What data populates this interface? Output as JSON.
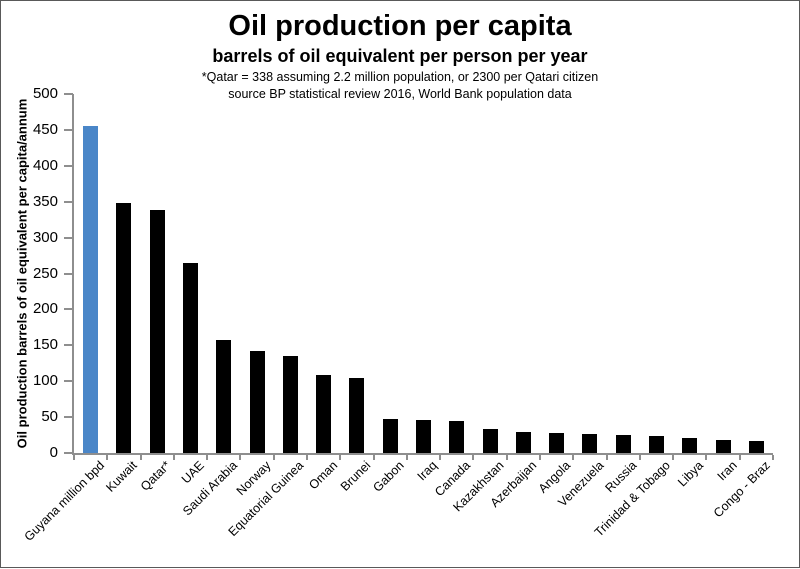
{
  "window": {
    "background": "#ffffff",
    "border_color": "#595959"
  },
  "chart_data": {
    "type": "bar",
    "title": "Oil production per capita",
    "subtitle": "barrels of oil equivalent per person per year",
    "notes": [
      "*Qatar = 338 assuming 2.2 million population, or 2300 per Qatari citizen",
      "source BP statistical review 2016, World Bank population data"
    ],
    "ylabel": "Oil production barrels of oil equivalent per capita/annum",
    "xlabel": "",
    "categories": [
      "Guyana million bpd",
      "Kuwait",
      "Qatar*",
      "UAE",
      "Saudi Arabia",
      "Norway",
      "Equatorial Guinea",
      "Oman",
      "Brunei",
      "Gabon",
      "Iraq",
      "Canada",
      "Kazakhstan",
      "Azerbaijan",
      "Angola",
      "Venezuela",
      "Russia",
      "Trinidad & Tobago",
      "Libya",
      "Iran",
      "Congo - Braz"
    ],
    "values": [
      455,
      348,
      338,
      264,
      157,
      142,
      135,
      108,
      105,
      48,
      46,
      44,
      33,
      29,
      28,
      26,
      25,
      23,
      21,
      18,
      17
    ],
    "ylim": [
      0,
      500
    ],
    "yticks": [
      0,
      50,
      100,
      150,
      200,
      250,
      300,
      350,
      400,
      450,
      500
    ],
    "grid": false,
    "legend": false,
    "highlight_index": 0,
    "colors": {
      "highlight_bar": "#4a86c8",
      "bar": "#000000",
      "axis": "#8e8e8e",
      "text": "#000000"
    }
  }
}
